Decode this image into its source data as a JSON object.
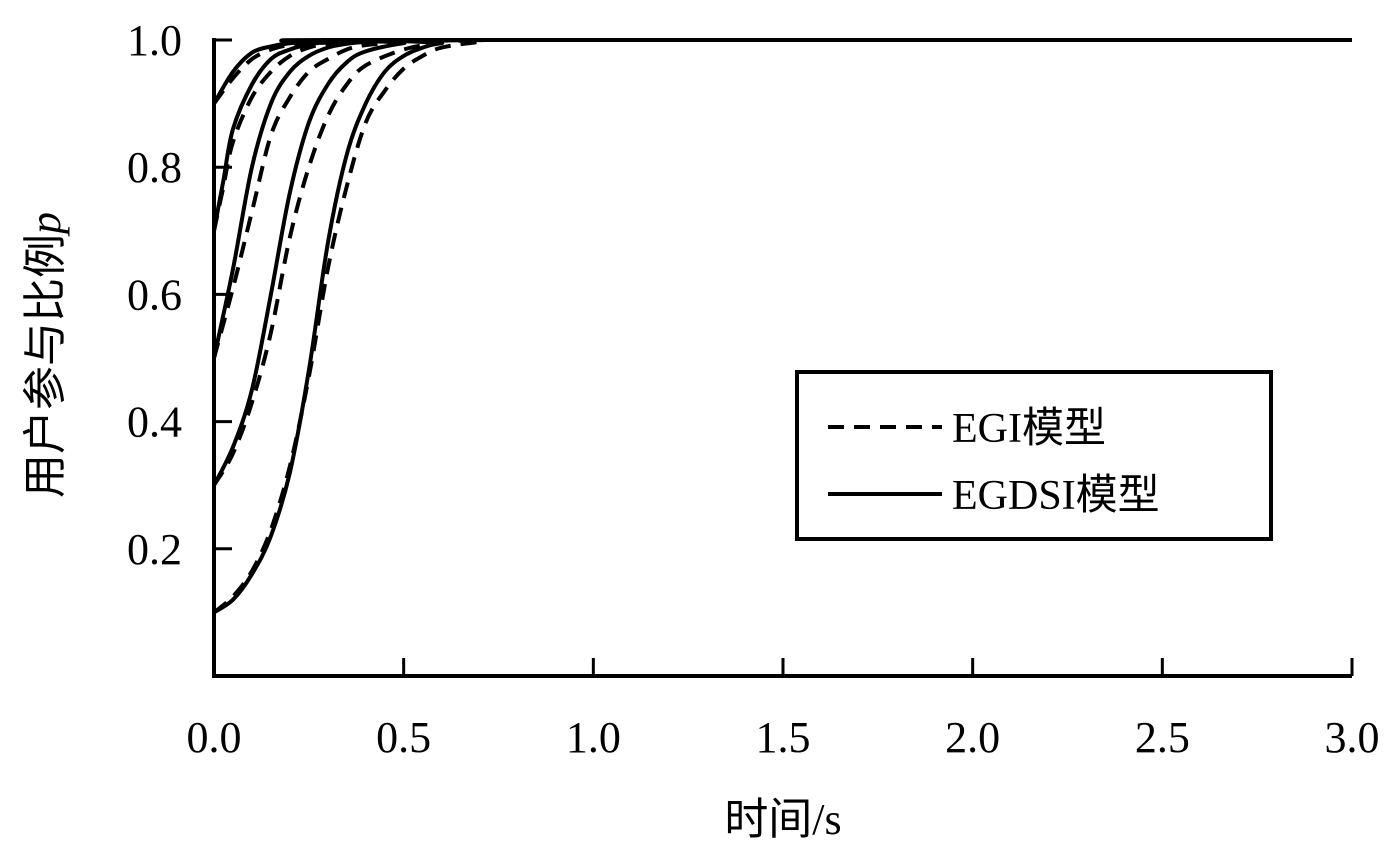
{
  "chart_data": {
    "type": "line",
    "xlabel": "时间/s",
    "ylabel": "用户参与比例",
    "ylabel_symbol": "p",
    "xlim": [
      0,
      3.0
    ],
    "ylim": [
      0,
      1.0
    ],
    "x_ticks": [
      "0.0",
      "0.5",
      "1.0",
      "1.5",
      "2.0",
      "2.5",
      "3.0"
    ],
    "y_ticks": [
      "0.2",
      "0.4",
      "0.6",
      "0.8",
      "1.0"
    ],
    "legend": {
      "position": "center-right",
      "entries": [
        {
          "label": "EGI模型",
          "style": "dashed"
        },
        {
          "label": "EGDSI模型",
          "style": "solid"
        }
      ]
    },
    "series": [
      {
        "group": "p0=0.9",
        "style": "solid",
        "x": [
          0,
          0.05,
          0.1,
          0.15,
          0.2,
          0.3,
          0.4,
          3.0
        ],
        "y": [
          0.9,
          0.95,
          0.98,
          0.99,
          0.995,
          0.998,
          1.0,
          1.0
        ]
      },
      {
        "group": "p0=0.9",
        "style": "dashed",
        "x": [
          0,
          0.05,
          0.1,
          0.15,
          0.2,
          0.3,
          0.4,
          0.5,
          3.0
        ],
        "y": [
          0.9,
          0.94,
          0.97,
          0.985,
          0.992,
          0.996,
          0.999,
          1.0,
          1.0
        ]
      },
      {
        "group": "p0=0.7",
        "style": "solid",
        "x": [
          0,
          0.025,
          0.05,
          0.1,
          0.15,
          0.2,
          0.25,
          0.3,
          0.4,
          3.0
        ],
        "y": [
          0.7,
          0.78,
          0.86,
          0.93,
          0.97,
          0.985,
          0.993,
          0.997,
          1.0,
          1.0
        ]
      },
      {
        "group": "p0=0.7",
        "style": "dashed",
        "x": [
          0,
          0.025,
          0.05,
          0.1,
          0.15,
          0.2,
          0.25,
          0.3,
          0.4,
          0.5,
          3.0
        ],
        "y": [
          0.7,
          0.77,
          0.84,
          0.91,
          0.95,
          0.975,
          0.988,
          0.994,
          0.998,
          1.0,
          1.0
        ]
      },
      {
        "group": "p0=0.5",
        "style": "solid",
        "x": [
          0,
          0.05,
          0.1,
          0.15,
          0.2,
          0.25,
          0.3,
          0.35,
          0.4,
          0.5,
          3.0
        ],
        "y": [
          0.5,
          0.64,
          0.8,
          0.9,
          0.95,
          0.975,
          0.988,
          0.994,
          0.997,
          1.0,
          1.0
        ]
      },
      {
        "group": "p0=0.5",
        "style": "dashed",
        "x": [
          0,
          0.05,
          0.1,
          0.15,
          0.2,
          0.25,
          0.3,
          0.35,
          0.4,
          0.5,
          0.6,
          3.0
        ],
        "y": [
          0.5,
          0.61,
          0.73,
          0.85,
          0.91,
          0.95,
          0.97,
          0.985,
          0.992,
          0.997,
          1.0,
          1.0
        ]
      },
      {
        "group": "p0=0.3",
        "style": "solid",
        "x": [
          0,
          0.05,
          0.1,
          0.15,
          0.2,
          0.25,
          0.3,
          0.35,
          0.4,
          0.5,
          0.6,
          3.0
        ],
        "y": [
          0.3,
          0.36,
          0.45,
          0.6,
          0.76,
          0.87,
          0.93,
          0.965,
          0.982,
          0.995,
          1.0,
          1.0
        ]
      },
      {
        "group": "p0=0.3",
        "style": "dashed",
        "x": [
          0,
          0.05,
          0.1,
          0.15,
          0.2,
          0.25,
          0.3,
          0.35,
          0.4,
          0.5,
          0.6,
          0.7,
          3.0
        ],
        "y": [
          0.3,
          0.35,
          0.43,
          0.54,
          0.69,
          0.8,
          0.88,
          0.93,
          0.96,
          0.985,
          0.996,
          1.0,
          1.0
        ]
      },
      {
        "group": "p0=0.1",
        "style": "solid",
        "x": [
          0,
          0.05,
          0.1,
          0.15,
          0.2,
          0.25,
          0.3,
          0.35,
          0.4,
          0.45,
          0.5,
          0.55,
          0.6,
          0.7,
          3.0
        ],
        "y": [
          0.1,
          0.12,
          0.16,
          0.22,
          0.32,
          0.48,
          0.68,
          0.82,
          0.9,
          0.95,
          0.975,
          0.988,
          0.995,
          1.0,
          1.0
        ]
      },
      {
        "group": "p0=0.1",
        "style": "dashed",
        "x": [
          0,
          0.05,
          0.1,
          0.15,
          0.2,
          0.25,
          0.3,
          0.35,
          0.4,
          0.45,
          0.5,
          0.55,
          0.6,
          0.7,
          0.8,
          3.0
        ],
        "y": [
          0.1,
          0.125,
          0.165,
          0.23,
          0.33,
          0.47,
          0.64,
          0.77,
          0.87,
          0.92,
          0.955,
          0.975,
          0.988,
          0.997,
          1.0,
          1.0
        ]
      }
    ]
  }
}
